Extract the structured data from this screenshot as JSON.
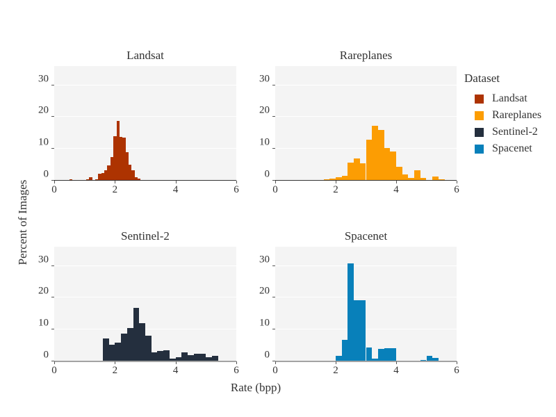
{
  "figure": {
    "x_axis_label": "Rate (bpp)",
    "y_axis_label": "Percent of Images",
    "x_ticks": [
      0,
      2,
      4,
      6
    ],
    "y_ticks": [
      0,
      10,
      20,
      30
    ]
  },
  "legend": {
    "title": "Dataset",
    "items": [
      {
        "label": "Landsat",
        "color": "#ad3301"
      },
      {
        "label": "Rareplanes",
        "color": "#fc9d03"
      },
      {
        "label": "Sentinel-2",
        "color": "#242f3e"
      },
      {
        "label": "Spacenet",
        "color": "#0880ba"
      }
    ]
  },
  "styles": {
    "plot_background": "#f4f4f4",
    "gridline_color": "#ffffff",
    "text_color": "#333333"
  },
  "chart_data": [
    {
      "type": "bar",
      "title": "Landsat",
      "color": "#ad3301",
      "xlabel": "Rate (bpp)",
      "ylabel": "Percent of Images",
      "xlim": [
        0,
        6
      ],
      "ylim": [
        0,
        36
      ],
      "grid_y": [
        10,
        20,
        30
      ],
      "bin_width": 0.1,
      "bin_starts": [
        0.2,
        0.3,
        0.5,
        0.6,
        1.05,
        1.15,
        1.35,
        1.45,
        1.55,
        1.65,
        1.75,
        1.85,
        1.95,
        2.05,
        2.15,
        2.25,
        2.35,
        2.45,
        2.55,
        2.65,
        2.75,
        2.85
      ],
      "values": [
        0.3,
        0.3,
        0.5,
        0.3,
        0.4,
        1.0,
        0.4,
        2.2,
        2.4,
        3.2,
        4.8,
        7.5,
        14.0,
        18.7,
        13.7,
        13.5,
        9.0,
        5.0,
        3.3,
        1.1,
        0.6,
        0.3
      ]
    },
    {
      "type": "bar",
      "title": "Rareplanes",
      "color": "#fc9d03",
      "xlabel": "Rate (bpp)",
      "ylabel": "Percent of Images",
      "xlim": [
        0,
        6
      ],
      "ylim": [
        0,
        36
      ],
      "grid_y": [
        10,
        20,
        30
      ],
      "bin_width": 0.2,
      "bin_starts": [
        1.0,
        1.4,
        1.6,
        1.8,
        2.0,
        2.2,
        2.4,
        2.6,
        2.8,
        3.0,
        3.2,
        3.4,
        3.6,
        3.8,
        4.0,
        4.2,
        4.4,
        4.6,
        4.8,
        5.0,
        5.2,
        5.4
      ],
      "values": [
        0.3,
        0.2,
        0.4,
        0.6,
        1.0,
        1.5,
        5.6,
        6.9,
        5.4,
        12.9,
        17.3,
        16.0,
        10.3,
        9.1,
        4.4,
        2.0,
        0.8,
        3.3,
        0.9,
        0.2,
        1.3,
        0.4
      ]
    },
    {
      "type": "bar",
      "title": "Sentinel-2",
      "color": "#242f3e",
      "xlabel": "Rate (bpp)",
      "ylabel": "Percent of Images",
      "xlim": [
        0,
        6
      ],
      "ylim": [
        0,
        36
      ],
      "grid_y": [
        10,
        20,
        30
      ],
      "bin_width": 0.2,
      "bin_starts": [
        1.6,
        1.8,
        2.0,
        2.2,
        2.4,
        2.6,
        2.8,
        3.0,
        3.2,
        3.4,
        3.6,
        3.8,
        4.0,
        4.2,
        4.4,
        4.6,
        4.8,
        5.0,
        5.2,
        5.4
      ],
      "values": [
        7.3,
        5.3,
        6.0,
        8.8,
        10.4,
        16.8,
        12.0,
        8.0,
        2.8,
        3.2,
        3.5,
        0.8,
        1.4,
        2.9,
        2.0,
        2.3,
        2.4,
        1.3,
        1.8,
        0.3
      ]
    },
    {
      "type": "bar",
      "title": "Spacenet",
      "color": "#0880ba",
      "xlabel": "Rate (bpp)",
      "ylabel": "Percent of Images",
      "xlim": [
        0,
        6
      ],
      "ylim": [
        0,
        36
      ],
      "grid_y": [
        10,
        20,
        30
      ],
      "bin_width": 0.2,
      "bin_starts": [
        1.8,
        2.0,
        2.2,
        2.4,
        2.6,
        2.8,
        3.0,
        3.2,
        3.4,
        3.6,
        3.8,
        4.0,
        4.4,
        4.8,
        5.0,
        5.2,
        5.4
      ],
      "values": [
        0.2,
        1.7,
        6.8,
        30.8,
        19.2,
        19.2,
        4.4,
        0.8,
        3.9,
        4.2,
        4.2,
        0.15,
        0.2,
        0.4,
        1.7,
        1.2,
        0.1
      ]
    }
  ]
}
